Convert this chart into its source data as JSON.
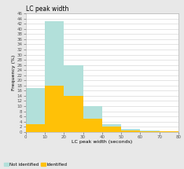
{
  "title": "LC peak width",
  "xlabel": "LC peak width (seconds)",
  "ylabel": "Frequency (%)",
  "background_color": "#e8e8e8",
  "plot_bg_color": "#ffffff",
  "bar_edges": [
    0,
    10,
    20,
    30,
    40,
    50,
    60,
    70,
    80
  ],
  "not_identified": [
    17,
    43,
    26,
    10,
    3,
    1,
    0.5,
    0.3
  ],
  "identified": [
    3,
    18,
    14,
    5,
    2,
    0.5,
    0.3,
    0.2
  ],
  "color_not_id": "#b2e0da",
  "color_id": "#ffc107",
  "ylim": [
    0,
    46
  ],
  "xticks": [
    0,
    10,
    20,
    30,
    40,
    50,
    60,
    70,
    80
  ],
  "ytick_step": 2,
  "legend_not_id": "Not identified",
  "legend_id": "Identified",
  "title_fontsize": 5.5,
  "label_fontsize": 4.5,
  "tick_fontsize": 4,
  "legend_fontsize": 4
}
